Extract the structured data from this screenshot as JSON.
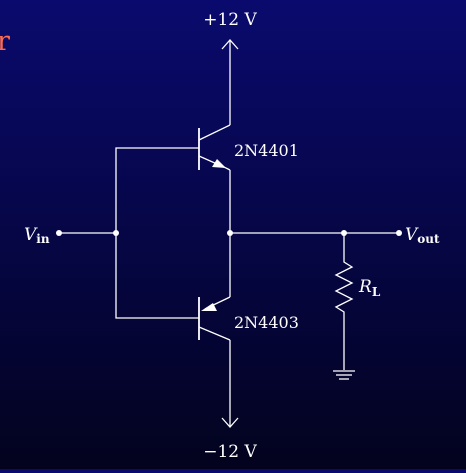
{
  "title_fragment": "r",
  "colors": {
    "background_top": "#0a0a6e",
    "background_bottom": "#03031e",
    "wires": "#ffffff",
    "title_fragment": "#ff6a4d"
  },
  "supply_top": {
    "sign": "+",
    "value": "12 V"
  },
  "supply_bottom": {
    "sign": "−",
    "value": "12 V"
  },
  "input": {
    "symbol": "V",
    "subscript": "in"
  },
  "output": {
    "symbol": "V",
    "subscript": "out"
  },
  "q_top": {
    "part": "2N4401",
    "type": "NPN"
  },
  "q_bottom": {
    "part": "2N4403",
    "type": "PNP"
  },
  "load": {
    "symbol": "R",
    "subscript": "L"
  }
}
